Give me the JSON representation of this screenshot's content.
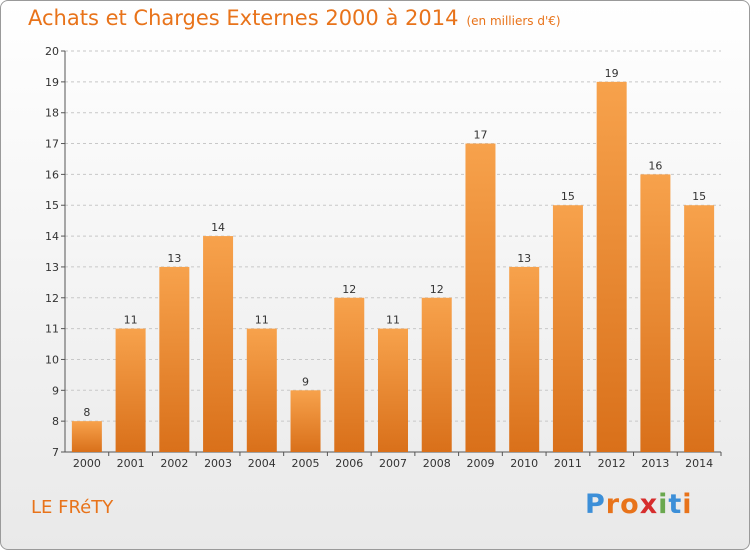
{
  "title": "Achats et Charges Externes 2000 à 2014",
  "unit": "(en milliers d'€)",
  "commune": "LE FRéTY",
  "logo": {
    "letters": [
      "P",
      "r",
      "o",
      "x",
      "i",
      "t",
      "i"
    ],
    "colors": [
      "#3c8fd8",
      "#e8731a",
      "#e8731a",
      "#d62d2d",
      "#6aa84f",
      "#3c8fd8",
      "#e8731a"
    ]
  },
  "colors": {
    "bar_top": "#f7a24c",
    "bar_bottom": "#d9701a",
    "title": "#e8731a",
    "grid": "#c8c8c8"
  },
  "chart_data": {
    "type": "bar",
    "title": "Achats et Charges Externes 2000 à 2014",
    "categories": [
      "2000",
      "2001",
      "2002",
      "2003",
      "2004",
      "2005",
      "2006",
      "2007",
      "2008",
      "2009",
      "2010",
      "2011",
      "2012",
      "2013",
      "2014"
    ],
    "values": [
      8,
      11,
      13,
      14,
      11,
      9,
      12,
      11,
      12,
      17,
      13,
      15,
      19,
      16,
      15
    ],
    "ylim": [
      7,
      20
    ],
    "yticks": [
      7,
      8,
      9,
      10,
      11,
      12,
      13,
      14,
      15,
      16,
      17,
      18,
      19,
      20
    ],
    "grid": true,
    "grid_style": "dashed"
  }
}
